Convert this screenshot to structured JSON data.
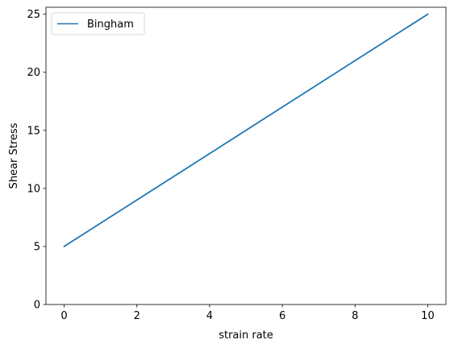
{
  "chart_data": {
    "type": "line",
    "title": "",
    "xlabel": "strain rate",
    "ylabel": "Shear Stress",
    "xlim": [
      -0.5,
      10.5
    ],
    "ylim": [
      0,
      25.6
    ],
    "xticks": [
      0,
      2,
      4,
      6,
      8,
      10
    ],
    "yticks": [
      0,
      5,
      10,
      15,
      20,
      25
    ],
    "xtick_labels": [
      "0",
      "2",
      "4",
      "6",
      "8",
      "10"
    ],
    "ytick_labels": [
      "0",
      "5",
      "10",
      "15",
      "20",
      "25"
    ],
    "grid": false,
    "legend_position": "upper-left",
    "series": [
      {
        "name": "Bingham",
        "color": "#1f77b4",
        "x": [
          0,
          10
        ],
        "y": [
          5,
          25
        ]
      }
    ]
  }
}
